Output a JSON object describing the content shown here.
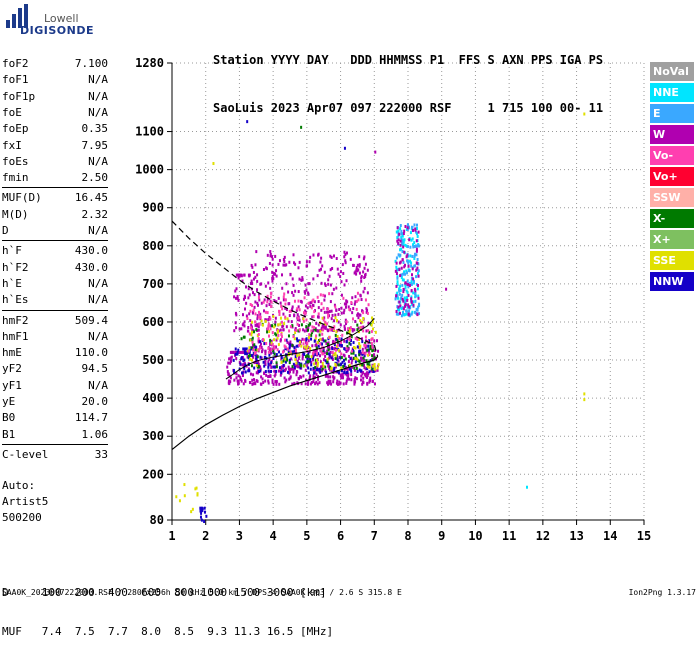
{
  "brand": {
    "line1": "Lowell",
    "line2": "DIGISONDE"
  },
  "header": {
    "line1": "Station YYYY DAY   DDD HHMMSS P1  FFS S AXN PPS IGA PS",
    "line2": "SaoLuis 2023 Apr07 097 222000 RSF     1 715 100 00- 11"
  },
  "params": [
    {
      "k": "foF2",
      "v": "7.100"
    },
    {
      "k": "foF1",
      "v": "N/A"
    },
    {
      "k": "foF1p",
      "v": "N/A"
    },
    {
      "k": "foE",
      "v": "N/A"
    },
    {
      "k": "foEp",
      "v": "0.35"
    },
    {
      "k": "fxI",
      "v": "7.95"
    },
    {
      "k": "foEs",
      "v": "N/A"
    },
    {
      "k": "fmin",
      "v": "2.50"
    },
    {
      "k": "MUF(D)",
      "v": "16.45"
    },
    {
      "k": "M(D)",
      "v": "2.32"
    },
    {
      "k": "D",
      "v": "N/A"
    },
    {
      "k": "h`F",
      "v": "430.0"
    },
    {
      "k": "h`F2",
      "v": "430.0"
    },
    {
      "k": "h`E",
      "v": "N/A"
    },
    {
      "k": "h`Es",
      "v": "N/A"
    },
    {
      "k": "hmF2",
      "v": "509.4"
    },
    {
      "k": "hmF1",
      "v": "N/A"
    },
    {
      "k": "hmE",
      "v": "110.0"
    },
    {
      "k": "yF2",
      "v": "94.5"
    },
    {
      "k": "yF1",
      "v": "N/A"
    },
    {
      "k": "yE",
      "v": "20.0"
    },
    {
      "k": "B0",
      "v": "114.7"
    },
    {
      "k": "B1",
      "v": "1.06"
    },
    {
      "k": "C-level",
      "v": "33"
    }
  ],
  "auto": {
    "l1": "Auto:",
    "l2": "Artist5",
    "l3": "500200"
  },
  "legend": [
    {
      "label": "NoVal",
      "color": "#a0a0a0"
    },
    {
      "label": "NNE",
      "color": "#00e5ff"
    },
    {
      "label": "E",
      "color": "#3aa8ff"
    },
    {
      "label": "W",
      "color": "#b000b0"
    },
    {
      "label": "Vo-",
      "color": "#ff3fb0"
    },
    {
      "label": "Vo+",
      "color": "#ff0030"
    },
    {
      "label": "SSW",
      "color": "#ffb0a8"
    },
    {
      "label": "X-",
      "color": "#007a00"
    },
    {
      "label": "X+",
      "color": "#7ec060"
    },
    {
      "label": "SSE",
      "color": "#e0e000"
    },
    {
      "label": "NNW",
      "color": "#1400c8"
    }
  ],
  "muf_table": {
    "line1": "D     100  200  400  600  800 1000 1500 3000 [km]",
    "line2": "MUF   7.4  7.5  7.7  8.0  8.5  9.3 11.3 16.5 [MHz]"
  },
  "footer": {
    "left": "SAA0K_2023097222000.RSF / 280fx256h 50 kHz 5.0 km / DPS-4 SAA0K 903 / 2.6 S 315.8 E",
    "right": "Ion2Png 1.3.17"
  },
  "chart_data": {
    "type": "scatter",
    "x_ticks": [
      1,
      2,
      3,
      4,
      5,
      6,
      7,
      8,
      9,
      10,
      11,
      12,
      13,
      14,
      15
    ],
    "y_ticks": [
      80,
      200,
      300,
      400,
      500,
      600,
      700,
      800,
      900,
      1000,
      1100,
      1280
    ],
    "xlim": [
      1,
      15
    ],
    "ylim": [
      80,
      1280
    ],
    "grid": true,
    "xlabel": "",
    "ylabel": "",
    "profile_solid": [
      [
        1.0,
        265
      ],
      [
        1.5,
        300
      ],
      [
        2.0,
        330
      ],
      [
        2.5,
        355
      ],
      [
        3.0,
        378
      ],
      [
        3.5,
        398
      ],
      [
        4.0,
        415
      ],
      [
        4.5,
        432
      ],
      [
        5.0,
        446
      ],
      [
        5.5,
        460
      ],
      [
        6.0,
        474
      ],
      [
        6.5,
        488
      ],
      [
        7.0,
        500
      ],
      [
        7.1,
        509
      ]
    ],
    "profile_dashed": [
      [
        1.0,
        865
      ],
      [
        1.5,
        820
      ],
      [
        2.0,
        780
      ],
      [
        2.5,
        745
      ],
      [
        3.0,
        710
      ],
      [
        3.5,
        680
      ],
      [
        4.0,
        655
      ],
      [
        4.5,
        632
      ],
      [
        5.0,
        612
      ],
      [
        5.5,
        594
      ],
      [
        6.0,
        578
      ],
      [
        6.5,
        560
      ],
      [
        7.0,
        540
      ],
      [
        7.1,
        509
      ]
    ],
    "trace_o": [
      [
        2.6,
        450
      ],
      [
        2.8,
        462
      ],
      [
        3.0,
        475
      ],
      [
        3.3,
        490
      ],
      [
        3.6,
        500
      ],
      [
        4.0,
        508
      ],
      [
        4.5,
        515
      ],
      [
        5.0,
        522
      ],
      [
        5.5,
        533
      ],
      [
        6.0,
        550
      ],
      [
        6.4,
        568
      ],
      [
        6.8,
        590
      ],
      [
        7.0,
        610
      ]
    ],
    "scatter_clusters": [
      {
        "x0": 2.6,
        "x1": 7.1,
        "y0": 440,
        "y1": 560,
        "color": "#b000b0",
        "n": 520
      },
      {
        "x0": 2.8,
        "x1": 6.8,
        "y0": 580,
        "y1": 790,
        "color": "#b000b0",
        "n": 420
      },
      {
        "x0": 2.8,
        "x1": 7.0,
        "y0": 470,
        "y1": 560,
        "color": "#1400c8",
        "n": 220
      },
      {
        "x0": 3.0,
        "x1": 7.0,
        "y0": 480,
        "y1": 600,
        "color": "#007a00",
        "n": 120
      },
      {
        "x0": 3.2,
        "x1": 7.1,
        "y0": 480,
        "y1": 620,
        "color": "#e0e000",
        "n": 120
      },
      {
        "x0": 3.2,
        "x1": 7.0,
        "y0": 520,
        "y1": 680,
        "color": "#ff3fb0",
        "n": 180
      },
      {
        "x0": 7.6,
        "x1": 8.3,
        "y0": 620,
        "y1": 860,
        "color": "#00e5ff",
        "n": 110
      },
      {
        "x0": 7.6,
        "x1": 8.3,
        "y0": 620,
        "y1": 860,
        "color": "#3aa8ff",
        "n": 110
      },
      {
        "x0": 7.6,
        "x1": 8.3,
        "y0": 620,
        "y1": 860,
        "color": "#b000b0",
        "n": 80
      },
      {
        "x0": 1.8,
        "x1": 2.0,
        "y0": 80,
        "y1": 130,
        "color": "#1400c8",
        "n": 12
      },
      {
        "x0": 1.0,
        "x1": 1.9,
        "y0": 100,
        "y1": 210,
        "color": "#e0e000",
        "n": 10
      }
    ],
    "sparse_points": [
      {
        "x": 13.2,
        "y": 1150,
        "color": "#e0e000"
      },
      {
        "x": 13.2,
        "y": 415,
        "color": "#e0e000"
      },
      {
        "x": 13.2,
        "y": 400,
        "color": "#e0e000"
      },
      {
        "x": 11.5,
        "y": 170,
        "color": "#00e5ff"
      },
      {
        "x": 3.2,
        "y": 1130,
        "color": "#1400c8"
      },
      {
        "x": 2.2,
        "y": 1020,
        "color": "#e0e000"
      },
      {
        "x": 4.8,
        "y": 1115,
        "color": "#007a00"
      },
      {
        "x": 6.1,
        "y": 1060,
        "color": "#1400c8"
      },
      {
        "x": 7.0,
        "y": 1050,
        "color": "#b000b0"
      },
      {
        "x": 9.1,
        "y": 690,
        "color": "#b000b0"
      }
    ]
  }
}
